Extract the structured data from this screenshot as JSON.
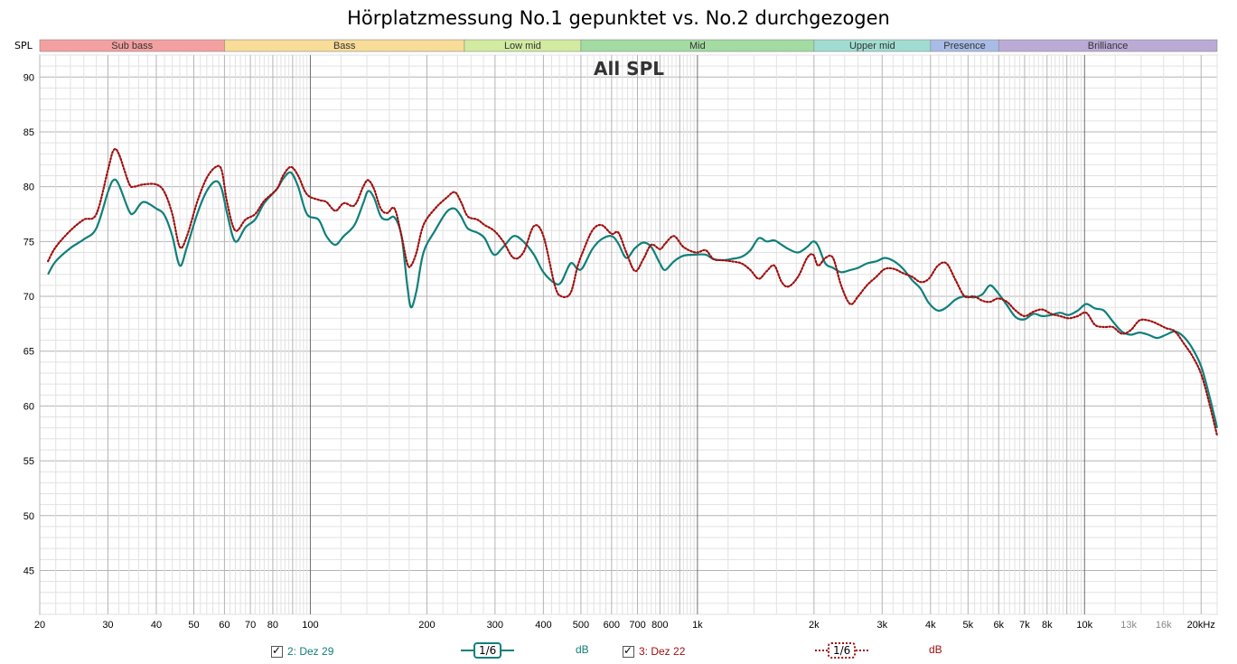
{
  "title": "Hörplatzmessung No.1 gepunktet vs. No.2 durchgezogen",
  "chart_data": {
    "type": "line",
    "title": "Hörplatzmessung No.1 gepunktet vs. No.2 durchgezogen",
    "inner_title": "All SPL",
    "ylabel": "SPL",
    "xscale": "log",
    "xlim": [
      20,
      22000
    ],
    "ylim": [
      41,
      92
    ],
    "grid": true,
    "y_ticks": [
      45,
      50,
      55,
      60,
      65,
      70,
      75,
      80,
      85,
      90
    ],
    "x_ticks": [
      {
        "v": 20,
        "l": "20"
      },
      {
        "v": 30,
        "l": "30"
      },
      {
        "v": 40,
        "l": "40"
      },
      {
        "v": 50,
        "l": "50"
      },
      {
        "v": 60,
        "l": "60"
      },
      {
        "v": 70,
        "l": "70"
      },
      {
        "v": 80,
        "l": "80"
      },
      {
        "v": 100,
        "l": "100"
      },
      {
        "v": 200,
        "l": "200"
      },
      {
        "v": 300,
        "l": "300"
      },
      {
        "v": 400,
        "l": "400"
      },
      {
        "v": 500,
        "l": "500"
      },
      {
        "v": 600,
        "l": "600"
      },
      {
        "v": 700,
        "l": "700"
      },
      {
        "v": 800,
        "l": "800"
      },
      {
        "v": 1000,
        "l": "1k"
      },
      {
        "v": 2000,
        "l": "2k"
      },
      {
        "v": 3000,
        "l": "3k"
      },
      {
        "v": 4000,
        "l": "4k"
      },
      {
        "v": 5000,
        "l": "5k"
      },
      {
        "v": 6000,
        "l": "6k"
      },
      {
        "v": 7000,
        "l": "7k"
      },
      {
        "v": 8000,
        "l": "8k"
      },
      {
        "v": 10000,
        "l": "10k"
      },
      {
        "v": 13000,
        "l": "13k"
      },
      {
        "v": 16000,
        "l": "16k"
      },
      {
        "v": 20000,
        "l": "20kHz"
      }
    ],
    "bands": [
      {
        "name": "Sub bass",
        "from": 20,
        "to": 60,
        "color": "#f4a0a0"
      },
      {
        "name": "Bass",
        "from": 60,
        "to": 250,
        "color": "#f8dc98"
      },
      {
        "name": "Low mid",
        "from": 250,
        "to": 500,
        "color": "#d2eba0"
      },
      {
        "name": "Mid",
        "from": 500,
        "to": 2000,
        "color": "#a2dca2"
      },
      {
        "name": "Upper mid",
        "from": 2000,
        "to": 4000,
        "color": "#a0dcd2"
      },
      {
        "name": "Presence",
        "from": 4000,
        "to": 6000,
        "color": "#a8bce6"
      },
      {
        "name": "Brilliance",
        "from": 6000,
        "to": 22000,
        "color": "#bcaad6"
      }
    ],
    "series": [
      {
        "name": "2: Dez 29",
        "color": "#10807a",
        "style": "solid",
        "smoothing": "1/6",
        "unit": "dB",
        "points": [
          [
            21,
            72.0
          ],
          [
            22,
            73.2
          ],
          [
            24,
            74.4
          ],
          [
            26,
            75.2
          ],
          [
            28,
            76.2
          ],
          [
            30,
            79.5
          ],
          [
            31,
            80.6
          ],
          [
            32,
            80.2
          ],
          [
            34,
            77.8
          ],
          [
            35,
            77.6
          ],
          [
            37,
            78.6
          ],
          [
            40,
            78.0
          ],
          [
            42,
            77.4
          ],
          [
            44,
            75.5
          ],
          [
            46,
            72.8
          ],
          [
            48,
            74.5
          ],
          [
            51,
            77.5
          ],
          [
            54,
            79.6
          ],
          [
            57,
            80.5
          ],
          [
            59,
            79.8
          ],
          [
            61,
            77.5
          ],
          [
            64,
            75.0
          ],
          [
            68,
            76.3
          ],
          [
            72,
            77.0
          ],
          [
            76,
            78.5
          ],
          [
            82,
            79.8
          ],
          [
            85,
            80.7
          ],
          [
            89,
            81.3
          ],
          [
            93,
            80.0
          ],
          [
            98,
            77.5
          ],
          [
            105,
            77.0
          ],
          [
            110,
            75.5
          ],
          [
            116,
            74.7
          ],
          [
            122,
            75.5
          ],
          [
            130,
            76.5
          ],
          [
            137,
            78.5
          ],
          [
            141,
            79.6
          ],
          [
            146,
            79.0
          ],
          [
            152,
            77.3
          ],
          [
            158,
            77.0
          ],
          [
            165,
            77.2
          ],
          [
            172,
            75.5
          ],
          [
            178,
            71.0
          ],
          [
            182,
            69.0
          ],
          [
            188,
            70.5
          ],
          [
            196,
            74.0
          ],
          [
            210,
            76.0
          ],
          [
            225,
            77.7
          ],
          [
            236,
            78.0
          ],
          [
            245,
            77.3
          ],
          [
            255,
            76.2
          ],
          [
            270,
            75.8
          ],
          [
            282,
            75.3
          ],
          [
            298,
            73.8
          ],
          [
            315,
            74.5
          ],
          [
            335,
            75.5
          ],
          [
            355,
            75.0
          ],
          [
            378,
            73.8
          ],
          [
            400,
            72.2
          ],
          [
            428,
            71.2
          ],
          [
            445,
            71.3
          ],
          [
            470,
            73.0
          ],
          [
            490,
            72.5
          ],
          [
            505,
            72.6
          ],
          [
            535,
            74.3
          ],
          [
            565,
            75.2
          ],
          [
            600,
            75.5
          ],
          [
            625,
            74.8
          ],
          [
            655,
            73.5
          ],
          [
            690,
            74.4
          ],
          [
            725,
            74.9
          ],
          [
            760,
            74.5
          ],
          [
            800,
            73.0
          ],
          [
            825,
            72.4
          ],
          [
            870,
            73.2
          ],
          [
            920,
            73.7
          ],
          [
            990,
            73.8
          ],
          [
            1050,
            73.8
          ],
          [
            1100,
            73.4
          ],
          [
            1160,
            73.3
          ],
          [
            1220,
            73.4
          ],
          [
            1300,
            73.6
          ],
          [
            1370,
            74.2
          ],
          [
            1440,
            75.3
          ],
          [
            1510,
            75.0
          ],
          [
            1580,
            75.1
          ],
          [
            1650,
            74.7
          ],
          [
            1720,
            74.3
          ],
          [
            1820,
            74.0
          ],
          [
            1920,
            74.5
          ],
          [
            1990,
            75.0
          ],
          [
            2050,
            74.6
          ],
          [
            2140,
            73.0
          ],
          [
            2240,
            72.6
          ],
          [
            2350,
            72.2
          ],
          [
            2480,
            72.4
          ],
          [
            2600,
            72.6
          ],
          [
            2740,
            73.0
          ],
          [
            2900,
            73.2
          ],
          [
            3050,
            73.5
          ],
          [
            3220,
            73.2
          ],
          [
            3400,
            72.5
          ],
          [
            3580,
            71.5
          ],
          [
            3770,
            70.7
          ],
          [
            3960,
            69.4
          ],
          [
            4180,
            68.7
          ],
          [
            4400,
            69.0
          ],
          [
            4640,
            69.7
          ],
          [
            4900,
            70.0
          ],
          [
            5180,
            69.9
          ],
          [
            5450,
            70.2
          ],
          [
            5700,
            71.0
          ],
          [
            5980,
            70.3
          ],
          [
            6300,
            69.2
          ],
          [
            6640,
            68.1
          ],
          [
            7000,
            67.9
          ],
          [
            7380,
            68.4
          ],
          [
            7780,
            68.2
          ],
          [
            8200,
            68.3
          ],
          [
            8650,
            68.5
          ],
          [
            9100,
            68.3
          ],
          [
            9600,
            68.7
          ],
          [
            10100,
            69.3
          ],
          [
            10640,
            68.9
          ],
          [
            11220,
            68.7
          ],
          [
            11830,
            67.7
          ],
          [
            12470,
            66.8
          ],
          [
            13150,
            66.5
          ],
          [
            13860,
            66.7
          ],
          [
            14610,
            66.5
          ],
          [
            15400,
            66.2
          ],
          [
            16240,
            66.5
          ],
          [
            17120,
            66.8
          ],
          [
            18050,
            66.3
          ],
          [
            19030,
            65.2
          ],
          [
            20060,
            63.5
          ],
          [
            21150,
            60.5
          ],
          [
            22000,
            58.0
          ]
        ]
      },
      {
        "name": "3: Dez 22",
        "color": "#a01010",
        "style": "dotted",
        "smoothing": "1/6",
        "unit": "dB",
        "points": [
          [
            21,
            73.2
          ],
          [
            22,
            74.5
          ],
          [
            24,
            76.0
          ],
          [
            26,
            77.0
          ],
          [
            28,
            77.5
          ],
          [
            30,
            81.5
          ],
          [
            31,
            83.3
          ],
          [
            32,
            83.0
          ],
          [
            34,
            80.3
          ],
          [
            35,
            80.0
          ],
          [
            37,
            80.2
          ],
          [
            40,
            80.2
          ],
          [
            42,
            79.5
          ],
          [
            44,
            77.5
          ],
          [
            46,
            74.5
          ],
          [
            48,
            75.5
          ],
          [
            51,
            78.6
          ],
          [
            54,
            80.8
          ],
          [
            57,
            81.8
          ],
          [
            59,
            81.5
          ],
          [
            61,
            78.5
          ],
          [
            64,
            76.0
          ],
          [
            68,
            77.0
          ],
          [
            72,
            77.5
          ],
          [
            76,
            78.7
          ],
          [
            82,
            79.8
          ],
          [
            85,
            81.0
          ],
          [
            89,
            81.8
          ],
          [
            93,
            81.0
          ],
          [
            98,
            79.3
          ],
          [
            105,
            78.8
          ],
          [
            110,
            78.6
          ],
          [
            116,
            77.8
          ],
          [
            122,
            78.5
          ],
          [
            130,
            78.3
          ],
          [
            137,
            80.0
          ],
          [
            141,
            80.6
          ],
          [
            146,
            79.8
          ],
          [
            152,
            78.0
          ],
          [
            158,
            77.6
          ],
          [
            165,
            78.0
          ],
          [
            172,
            75.5
          ],
          [
            178,
            73.0
          ],
          [
            182,
            72.8
          ],
          [
            188,
            74.0
          ],
          [
            196,
            76.5
          ],
          [
            210,
            78.0
          ],
          [
            225,
            79.0
          ],
          [
            236,
            79.5
          ],
          [
            245,
            78.6
          ],
          [
            255,
            77.3
          ],
          [
            270,
            77.0
          ],
          [
            282,
            76.5
          ],
          [
            298,
            76.0
          ],
          [
            315,
            75.0
          ],
          [
            335,
            73.5
          ],
          [
            355,
            74.0
          ],
          [
            378,
            76.4
          ],
          [
            400,
            75.5
          ],
          [
            428,
            71.0
          ],
          [
            445,
            70.0
          ],
          [
            470,
            70.3
          ],
          [
            490,
            72.7
          ],
          [
            505,
            74.0
          ],
          [
            535,
            76.0
          ],
          [
            565,
            76.5
          ],
          [
            600,
            75.7
          ],
          [
            625,
            75.8
          ],
          [
            655,
            74.0
          ],
          [
            690,
            72.3
          ],
          [
            725,
            73.4
          ],
          [
            760,
            74.7
          ],
          [
            800,
            74.3
          ],
          [
            825,
            74.8
          ],
          [
            870,
            75.5
          ],
          [
            920,
            74.5
          ],
          [
            990,
            74.0
          ],
          [
            1050,
            74.2
          ],
          [
            1100,
            73.4
          ],
          [
            1160,
            73.3
          ],
          [
            1220,
            73.2
          ],
          [
            1300,
            73.0
          ],
          [
            1370,
            72.4
          ],
          [
            1440,
            71.6
          ],
          [
            1510,
            72.3
          ],
          [
            1580,
            72.8
          ],
          [
            1650,
            71.3
          ],
          [
            1720,
            70.9
          ],
          [
            1820,
            71.8
          ],
          [
            1920,
            73.5
          ],
          [
            1990,
            73.8
          ],
          [
            2050,
            72.8
          ],
          [
            2140,
            73.5
          ],
          [
            2240,
            73.5
          ],
          [
            2350,
            71.0
          ],
          [
            2480,
            69.3
          ],
          [
            2600,
            70.0
          ],
          [
            2740,
            71.0
          ],
          [
            2900,
            71.8
          ],
          [
            3050,
            72.5
          ],
          [
            3220,
            72.5
          ],
          [
            3400,
            72.1
          ],
          [
            3580,
            71.8
          ],
          [
            3770,
            71.3
          ],
          [
            3960,
            71.6
          ],
          [
            4180,
            72.8
          ],
          [
            4400,
            73.0
          ],
          [
            4640,
            71.5
          ],
          [
            4900,
            70.0
          ],
          [
            5180,
            70.0
          ],
          [
            5450,
            69.6
          ],
          [
            5700,
            69.5
          ],
          [
            5980,
            69.8
          ],
          [
            6300,
            69.5
          ],
          [
            6640,
            68.7
          ],
          [
            7000,
            68.2
          ],
          [
            7380,
            68.6
          ],
          [
            7780,
            68.8
          ],
          [
            8200,
            68.4
          ],
          [
            8650,
            68.2
          ],
          [
            9100,
            68.0
          ],
          [
            9600,
            68.2
          ],
          [
            10100,
            68.5
          ],
          [
            10640,
            67.4
          ],
          [
            11220,
            67.2
          ],
          [
            11830,
            67.2
          ],
          [
            12470,
            66.6
          ],
          [
            13150,
            66.9
          ],
          [
            13860,
            67.8
          ],
          [
            14610,
            67.8
          ],
          [
            15400,
            67.5
          ],
          [
            16240,
            67.1
          ],
          [
            17120,
            66.8
          ],
          [
            18050,
            65.7
          ],
          [
            19030,
            64.5
          ],
          [
            20060,
            62.8
          ],
          [
            21150,
            59.8
          ],
          [
            22000,
            57.3
          ]
        ]
      }
    ]
  },
  "legend": [
    {
      "label": "2: Dez 29",
      "smoothing": "1/6",
      "unit": "dB",
      "color": "#10807a"
    },
    {
      "label": "3: Dez 22",
      "smoothing": "1/6",
      "unit": "dB",
      "color": "#a01010"
    }
  ]
}
